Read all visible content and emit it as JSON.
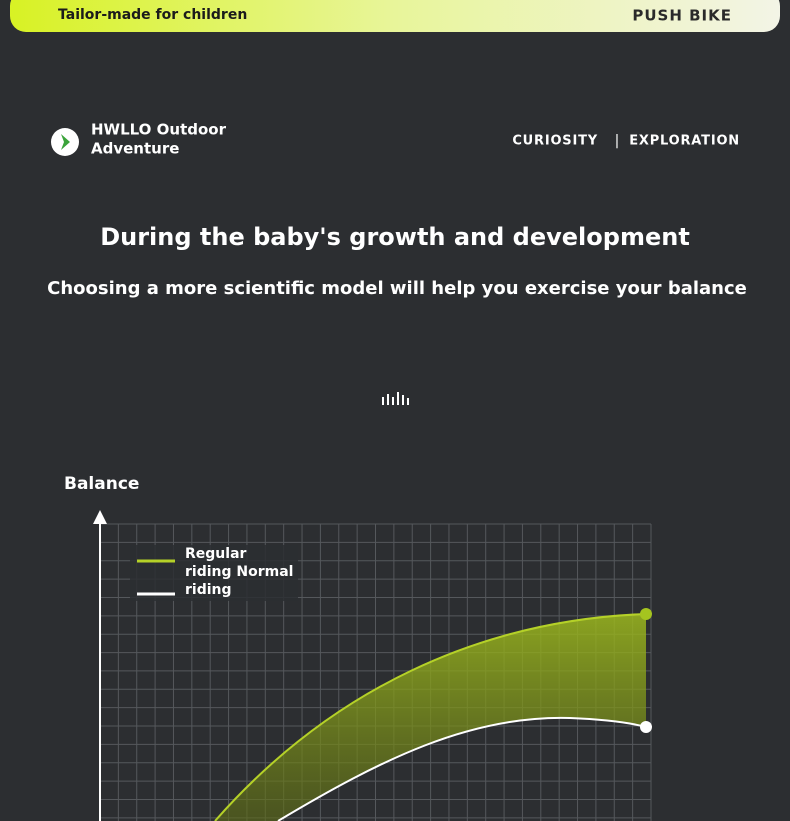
{
  "header": {
    "tagline": "Tailor-made for children",
    "product": "PUSH BIKE"
  },
  "brand": {
    "line1": "HWLLO Outdoor",
    "line2": "Adventure"
  },
  "nav": {
    "items": [
      "CURIOSITY",
      "EXPLORATION"
    ],
    "separator": "|"
  },
  "headline": "During the baby's growth and development",
  "subheadline": "Choosing a more scientific model will help you exercise your balance",
  "chart": {
    "axis_label": "Balance",
    "legend_lines": [
      "Regular",
      "riding Normal",
      "riding"
    ]
  }
}
